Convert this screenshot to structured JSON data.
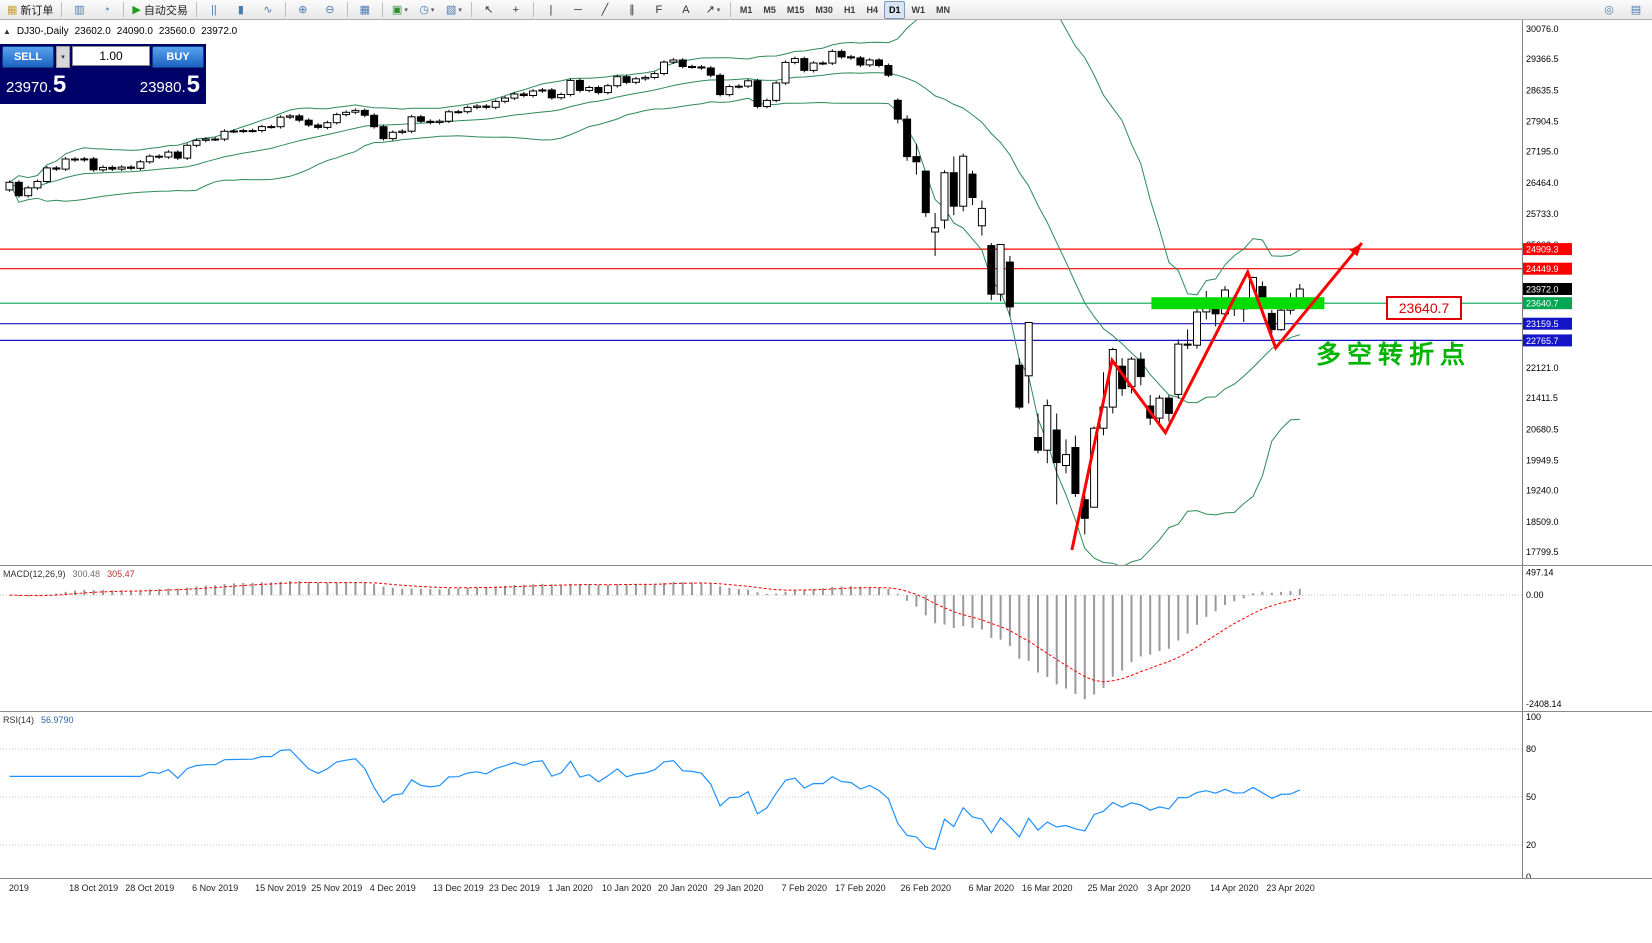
{
  "toolbar": {
    "items": [
      {
        "name": "new-order-button",
        "glyph": "▦",
        "glyph_color": "#c8a13a",
        "label": "新订单"
      },
      {
        "type": "sep"
      },
      {
        "name": "charts-bar-button",
        "glyph": "▥",
        "glyph_color": "#4a7ab5"
      },
      {
        "name": "community-button",
        "glyph": "◔",
        "glyph_color": "#4a7ab5"
      },
      {
        "type": "sep"
      },
      {
        "name": "autotrading-button",
        "glyph": "▶",
        "glyph_color": "#1f9d1f",
        "label": "自动交易"
      },
      {
        "type": "sep"
      },
      {
        "name": "bar-chart-button",
        "glyph": "||",
        "glyph_color": "#4a7ab5"
      },
      {
        "name": "candlestick-button",
        "glyph": "▮",
        "glyph_color": "#4a7ab5"
      },
      {
        "name": "line-chart-button",
        "glyph": "∿",
        "glyph_color": "#4a7ab5"
      },
      {
        "type": "sep"
      },
      {
        "name": "zoom-in-button",
        "glyph": "⊕",
        "glyph_color": "#4a7ab5"
      },
      {
        "name": "zoom-out-button",
        "glyph": "⊖",
        "glyph_color": "#4a7ab5"
      },
      {
        "type": "sep"
      },
      {
        "name": "tile-windows-button",
        "glyph": "▦",
        "glyph_color": "#4a7ab5"
      },
      {
        "type": "sep"
      },
      {
        "name": "new-chart-button",
        "glyph": "▣",
        "glyph_color": "#2f8f2f",
        "dropdown": true
      },
      {
        "name": "profiles-button",
        "glyph": "◷",
        "glyph_color": "#4a7ab5",
        "dropdown": true
      },
      {
        "name": "templates-button",
        "glyph": "▧",
        "glyph_color": "#4a7ab5",
        "dropdown": true
      },
      {
        "type": "sep"
      },
      {
        "name": "cursor-button",
        "glyph": "↖",
        "glyph_color": "#333333"
      },
      {
        "name": "crosshair-button",
        "glyph": "+",
        "glyph_color": "#333333"
      },
      {
        "type": "sep"
      },
      {
        "name": "vertical-line-button",
        "glyph": "|",
        "glyph_color": "#333333"
      },
      {
        "name": "horizontal-line-button",
        "glyph": "─",
        "glyph_color": "#333333"
      },
      {
        "name": "trendline-button",
        "glyph": "╱",
        "glyph_color": "#333333"
      },
      {
        "name": "channel-button",
        "glyph": "∥",
        "glyph_color": "#333333"
      },
      {
        "name": "fibonacci-button",
        "glyph": "F",
        "glyph_color": "#333333"
      },
      {
        "name": "text-button",
        "glyph": "A",
        "glyph_color": "#333333"
      },
      {
        "name": "arrows-button",
        "glyph": "↗",
        "glyph_color": "#333333",
        "dropdown": true
      },
      {
        "type": "sep"
      }
    ],
    "timeframes": {
      "items": [
        "M1",
        "M5",
        "M15",
        "M30",
        "H1",
        "H4",
        "D1",
        "W1",
        "MN"
      ],
      "active": "D1"
    },
    "right_items": [
      {
        "name": "search-button",
        "glyph": "◎",
        "glyph_color": "#4a7ab5"
      },
      {
        "name": "window-list-button",
        "glyph": "▤",
        "glyph_color": "#4a7ab5"
      }
    ]
  },
  "chart_header": {
    "collapse_icon": "▲",
    "symbol": "DJ30-,Daily",
    "open": "23602.0",
    "high": "24090.0",
    "low": "23560.0",
    "close": "23972.0"
  },
  "trade_panel": {
    "sell_label": "SELL",
    "buy_label": "BUY",
    "volume": "1.00",
    "dropdown_icon": "▾",
    "sell_price_main": "23970.",
    "sell_price_pip": "5",
    "buy_price_main": "23980.",
    "buy_price_pip": "5"
  },
  "annotations": {
    "price_flag": "23640.7",
    "cn_note": "多空转折点",
    "note_color": "#00b400",
    "flag_color": "#e00000"
  },
  "indicators": {
    "macd": {
      "label": "MACD(12,26,9)",
      "value": "300.48",
      "signal_value": "305.47",
      "axis_labels": [
        "497.14",
        "0.00",
        "-2408.14"
      ],
      "axis_values": [
        497.14,
        0,
        -2408.14
      ],
      "histogram_color": "#9a9a9a",
      "signal_color": "#ff0000",
      "range": [
        -2500,
        600
      ]
    },
    "rsi": {
      "label": "RSI(14)",
      "value": "56.9790",
      "axis_labels": [
        "100",
        "80",
        "50",
        "20",
        "0"
      ],
      "axis_values": [
        100,
        80,
        50,
        20,
        0
      ],
      "levels": [
        80,
        50,
        20
      ],
      "color": "#1e90ff"
    }
  },
  "chart_data": {
    "type": "candlestick",
    "symbol": "DJ30-",
    "timeframe": "Daily",
    "last_ohlc": {
      "open": 23602.0,
      "high": 24090.0,
      "low": 23560.0,
      "close": 23972.0
    },
    "price_range": [
      17565,
      30240
    ],
    "y_axis_labels": [
      30076.0,
      29366.5,
      28635.5,
      27904.5,
      27195.0,
      26464.0,
      25733.0,
      25002.0,
      22121.0,
      21411.5,
      20680.5,
      19949.5,
      19240.0,
      18509.0,
      17799.5
    ],
    "price_lines": [
      {
        "price": 24909.3,
        "label": "24909.3",
        "color": "#ff0000"
      },
      {
        "price": 24449.9,
        "label": "24449.9",
        "color": "#ff0000"
      },
      {
        "price": 23640.7,
        "label": "23640.7",
        "color": "#00a651"
      },
      {
        "price": 23159.5,
        "label": "23159.5",
        "color": "#1515c8"
      },
      {
        "price": 22765.7,
        "label": "22765.7",
        "color": "#1515c8"
      }
    ],
    "current_price": {
      "value": 23972.0,
      "label": "23972.0",
      "color": "#000000"
    },
    "bollinger": {
      "period": 20,
      "deviation": 2,
      "color": "#2e8b57"
    },
    "highlight_zone": {
      "from_index": 122.5,
      "to_index": 141,
      "price": 23640.7,
      "color": "#00dc00",
      "half_height": 6
    },
    "trend_line": {
      "color": "#ff0000",
      "width": 3,
      "points": [
        [
          114,
          17850
        ],
        [
          118.3,
          22300
        ],
        [
          124,
          20600
        ],
        [
          132.8,
          24370
        ],
        [
          135.8,
          22590
        ],
        [
          145,
          25050
        ]
      ]
    },
    "date_labels": [
      {
        "i": 1,
        "label": "2019"
      },
      {
        "i": 9,
        "label": "18 Oct 2019"
      },
      {
        "i": 15,
        "label": "28 Oct 2019"
      },
      {
        "i": 22,
        "label": "6 Nov 2019"
      },
      {
        "i": 29,
        "label": "15 Nov 2019"
      },
      {
        "i": 35,
        "label": "25 Nov 2019"
      },
      {
        "i": 41,
        "label": "4 Dec 2019"
      },
      {
        "i": 48,
        "label": "13 Dec 2019"
      },
      {
        "i": 54,
        "label": "23 Dec 2019"
      },
      {
        "i": 60,
        "label": "1 Jan 2020"
      },
      {
        "i": 66,
        "label": "10 Jan 2020"
      },
      {
        "i": 72,
        "label": "20 Jan 2020"
      },
      {
        "i": 78,
        "label": "29 Jan 2020"
      },
      {
        "i": 85,
        "label": "7 Feb 2020"
      },
      {
        "i": 91,
        "label": "17 Feb 2020"
      },
      {
        "i": 98,
        "label": "26 Feb 2020"
      },
      {
        "i": 105,
        "label": "6 Mar 2020"
      },
      {
        "i": 111,
        "label": "16 Mar 2020"
      },
      {
        "i": 118,
        "label": "25 Mar 2020"
      },
      {
        "i": 124,
        "label": "3 Apr 2020"
      },
      {
        "i": 131,
        "label": "14 Apr 2020"
      },
      {
        "i": 137,
        "label": "23 Apr 2020"
      }
    ],
    "candles": [
      [
        26300,
        26523,
        26255,
        26478
      ],
      [
        26478,
        26523,
        26119,
        26164
      ],
      [
        26164,
        26391,
        26119,
        26346
      ],
      [
        26346,
        26542,
        26301,
        26497
      ],
      [
        26497,
        26861,
        26452,
        26816
      ],
      [
        26816,
        26861,
        26742,
        26787
      ],
      [
        26787,
        27070,
        26742,
        27025
      ],
      [
        27025,
        27070,
        26957,
        27002
      ],
      [
        27002,
        27071,
        26957,
        27026
      ],
      [
        27026,
        27071,
        26725,
        26770
      ],
      [
        26770,
        26873,
        26725,
        26828
      ],
      [
        26828,
        26873,
        26743,
        26788
      ],
      [
        26788,
        26879,
        26743,
        26834
      ],
      [
        26834,
        26879,
        26760,
        26805
      ],
      [
        26805,
        27003,
        26760,
        26958
      ],
      [
        26958,
        27135,
        26913,
        27090
      ],
      [
        27090,
        27135,
        27026,
        27071
      ],
      [
        27071,
        27231,
        27026,
        27186
      ],
      [
        27186,
        27231,
        27001,
        27046
      ],
      [
        27046,
        27392,
        27001,
        27347
      ],
      [
        27347,
        27507,
        27302,
        27462
      ],
      [
        27462,
        27538,
        27417,
        27493
      ],
      [
        27493,
        27538,
        27447,
        27492
      ],
      [
        27492,
        27720,
        27447,
        27675
      ],
      [
        27675,
        27726,
        27630,
        27681
      ],
      [
        27681,
        27736,
        27636,
        27691
      ],
      [
        27691,
        27737,
        27646,
        27692
      ],
      [
        27692,
        27829,
        27647,
        27784
      ],
      [
        27784,
        27829,
        27737,
        27782
      ],
      [
        27782,
        28050,
        27737,
        28005
      ],
      [
        28005,
        28081,
        27960,
        28036
      ],
      [
        28036,
        28081,
        27889,
        27934
      ],
      [
        27934,
        27979,
        27776,
        27821
      ],
      [
        27821,
        27866,
        27721,
        27766
      ],
      [
        27766,
        27921,
        27721,
        27876
      ],
      [
        27876,
        28111,
        27831,
        28066
      ],
      [
        28066,
        28166,
        28021,
        28121
      ],
      [
        28121,
        28209,
        28076,
        28164
      ],
      [
        28164,
        28209,
        28006,
        28051
      ],
      [
        28051,
        28096,
        27738,
        27783
      ],
      [
        27783,
        27828,
        27458,
        27503
      ],
      [
        27503,
        27695,
        27458,
        27650
      ],
      [
        27650,
        27723,
        27605,
        27678
      ],
      [
        27678,
        28060,
        27633,
        28015
      ],
      [
        28015,
        28060,
        27865,
        27910
      ],
      [
        27910,
        27955,
        27837,
        27882
      ],
      [
        27882,
        27956,
        27837,
        27911
      ],
      [
        27911,
        28177,
        27866,
        28132
      ],
      [
        28132,
        28180,
        28087,
        28135
      ],
      [
        28135,
        28281,
        28090,
        28236
      ],
      [
        28236,
        28312,
        28191,
        28267
      ],
      [
        28267,
        28312,
        28194,
        28239
      ],
      [
        28239,
        28422,
        28194,
        28377
      ],
      [
        28377,
        28500,
        28332,
        28455
      ],
      [
        28455,
        28596,
        28410,
        28551
      ],
      [
        28551,
        28596,
        28471,
        28516
      ],
      [
        28516,
        28666,
        28471,
        28621
      ],
      [
        28621,
        28690,
        28576,
        28645
      ],
      [
        28645,
        28690,
        28417,
        28462
      ],
      [
        28462,
        28583,
        28417,
        28538
      ],
      [
        28538,
        28914,
        28493,
        28869
      ],
      [
        28869,
        28914,
        28590,
        28635
      ],
      [
        28635,
        28748,
        28590,
        28703
      ],
      [
        28703,
        28748,
        28539,
        28584
      ],
      [
        28584,
        28790,
        28539,
        28745
      ],
      [
        28745,
        29002,
        28700,
        28957
      ],
      [
        28957,
        29002,
        28779,
        28824
      ],
      [
        28824,
        28952,
        28779,
        28907
      ],
      [
        28907,
        28984,
        28862,
        28939
      ],
      [
        28939,
        29075,
        28894,
        29030
      ],
      [
        29030,
        29343,
        28985,
        29298
      ],
      [
        29298,
        29393,
        29253,
        29348
      ],
      [
        29348,
        29393,
        29151,
        29196
      ],
      [
        29196,
        29241,
        29141,
        29186
      ],
      [
        29186,
        29231,
        29115,
        29160
      ],
      [
        29160,
        29205,
        28945,
        28990
      ],
      [
        28990,
        29035,
        28491,
        28536
      ],
      [
        28536,
        28768,
        28491,
        28723
      ],
      [
        28723,
        28779,
        28678,
        28734
      ],
      [
        28734,
        28904,
        28689,
        28859
      ],
      [
        28859,
        28904,
        28211,
        28256
      ],
      [
        28256,
        28445,
        28211,
        28400
      ],
      [
        28400,
        28853,
        28355,
        28808
      ],
      [
        28808,
        29336,
        28763,
        29291
      ],
      [
        29291,
        29425,
        29246,
        29380
      ],
      [
        29380,
        29425,
        29058,
        29103
      ],
      [
        29103,
        29322,
        29058,
        29277
      ],
      [
        29277,
        29322,
        29231,
        29276
      ],
      [
        29276,
        29596,
        29231,
        29551
      ],
      [
        29551,
        29596,
        29378,
        29423
      ],
      [
        29423,
        29468,
        29353,
        29398
      ],
      [
        29398,
        29443,
        29187,
        29232
      ],
      [
        29232,
        29393,
        29187,
        29348
      ],
      [
        29348,
        29393,
        29175,
        29220
      ],
      [
        29220,
        29265,
        28947,
        28992
      ],
      [
        28402,
        28450,
        27861,
        27961
      ],
      [
        27961,
        28050,
        26981,
        27081
      ],
      [
        27081,
        27381,
        26658,
        26958
      ],
      [
        26740,
        26740,
        25667,
        25767
      ],
      [
        25310,
        25760,
        24750,
        25409
      ],
      [
        25590,
        26760,
        25390,
        26703
      ],
      [
        26703,
        27084,
        25706,
        25917
      ],
      [
        25917,
        27150,
        25800,
        27091
      ],
      [
        26671,
        26750,
        25943,
        26121
      ],
      [
        25457,
        26050,
        25227,
        25865
      ],
      [
        24992,
        25050,
        23707,
        23851
      ],
      [
        23851,
        25020,
        23690,
        25018
      ],
      [
        24604,
        24750,
        23328,
        23553
      ],
      [
        22184,
        22350,
        21154,
        21201
      ],
      [
        21936,
        23189,
        21285,
        23186
      ],
      [
        20487,
        21050,
        20116,
        20189
      ],
      [
        20189,
        21379,
        19882,
        21237
      ],
      [
        20664,
        21050,
        18917,
        19899
      ],
      [
        19830,
        20442,
        19649,
        20087
      ],
      [
        20253,
        20531,
        19094,
        19174
      ],
      [
        19028,
        19121,
        18213,
        18592
      ],
      [
        18850,
        20750,
        18850,
        20705
      ],
      [
        20705,
        22020,
        20538,
        21201
      ],
      [
        21201,
        22595,
        21050,
        22552
      ],
      [
        22162,
        22350,
        21469,
        21637
      ],
      [
        21678,
        22378,
        21522,
        22327
      ],
      [
        22327,
        22482,
        21712,
        21917
      ],
      [
        21227,
        21487,
        20784,
        20944
      ],
      [
        20944,
        21477,
        20735,
        21413
      ],
      [
        21413,
        21477,
        20863,
        21053
      ],
      [
        21500,
        22790,
        21400,
        22680
      ],
      [
        22680,
        23022,
        22564,
        22654
      ],
      [
        22654,
        23513,
        22574,
        23434
      ],
      [
        23434,
        23925,
        23257,
        23719
      ],
      [
        23600,
        23710,
        23096,
        23391
      ],
      [
        23391,
        24041,
        23340,
        23950
      ],
      [
        23707,
        23830,
        23339,
        23504
      ],
      [
        23504,
        23732,
        23199,
        23538
      ],
      [
        23700,
        24265,
        23610,
        24242
      ],
      [
        24029,
        24150,
        23628,
        23650
      ],
      [
        23400,
        23480,
        22941,
        23019
      ],
      [
        23019,
        23613,
        22991,
        23476
      ],
      [
        23476,
        23885,
        23376,
        23515
      ],
      [
        23602,
        24090,
        23560,
        23972
      ]
    ]
  }
}
